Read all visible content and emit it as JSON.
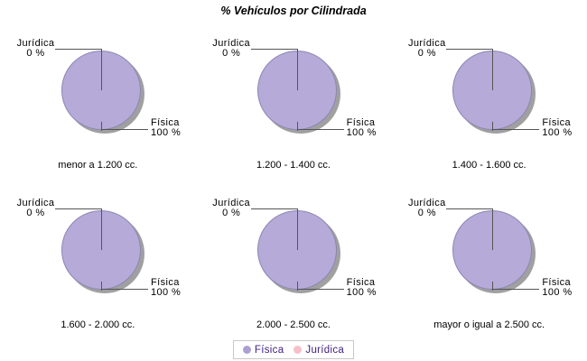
{
  "title": "% Vehículos por Cilindrada",
  "pie_labels": {
    "juridica_name": "Jurídica",
    "juridica_value": "0 %",
    "fisica_name": "Física",
    "fisica_value": "100 %"
  },
  "captions": [
    "menor a 1.200 cc.",
    "1.200 - 1.400 cc.",
    "1.400 - 1.600 cc.",
    "1.600 - 2.000 cc.",
    "2.000 - 2.500 cc.",
    "mayor o igual a 2.500 cc."
  ],
  "legend": {
    "items": [
      {
        "label": "Física",
        "color": "#aca0d2"
      },
      {
        "label": "Jurídica",
        "color": "#f6bfca"
      }
    ],
    "text_color": "#41217f"
  },
  "colors": {
    "pie_fill": "#b5aad8",
    "pie_outline": "#8d86b2",
    "shadow": "#a0a0a0",
    "callout_line": "#555555",
    "text": "#000000",
    "background": "#ffffff"
  },
  "chart_data": [
    {
      "type": "pie",
      "title": "menor a 1.200 cc.",
      "categories": [
        "Física",
        "Jurídica"
      ],
      "values": [
        100,
        0
      ],
      "units": "%",
      "legend_position": "bottom"
    },
    {
      "type": "pie",
      "title": "1.200 - 1.400 cc.",
      "categories": [
        "Física",
        "Jurídica"
      ],
      "values": [
        100,
        0
      ],
      "units": "%",
      "legend_position": "bottom"
    },
    {
      "type": "pie",
      "title": "1.400 - 1.600 cc.",
      "categories": [
        "Física",
        "Jurídica"
      ],
      "values": [
        100,
        0
      ],
      "units": "%",
      "legend_position": "bottom"
    },
    {
      "type": "pie",
      "title": "1.600 - 2.000 cc.",
      "categories": [
        "Física",
        "Jurídica"
      ],
      "values": [
        100,
        0
      ],
      "units": "%",
      "legend_position": "bottom"
    },
    {
      "type": "pie",
      "title": "2.000 - 2.500 cc.",
      "categories": [
        "Física",
        "Jurídica"
      ],
      "values": [
        100,
        0
      ],
      "units": "%",
      "legend_position": "bottom"
    },
    {
      "type": "pie",
      "title": "mayor o igual a 2.500 cc.",
      "categories": [
        "Física",
        "Jurídica"
      ],
      "values": [
        100,
        0
      ],
      "units": "%",
      "legend_position": "bottom"
    }
  ]
}
